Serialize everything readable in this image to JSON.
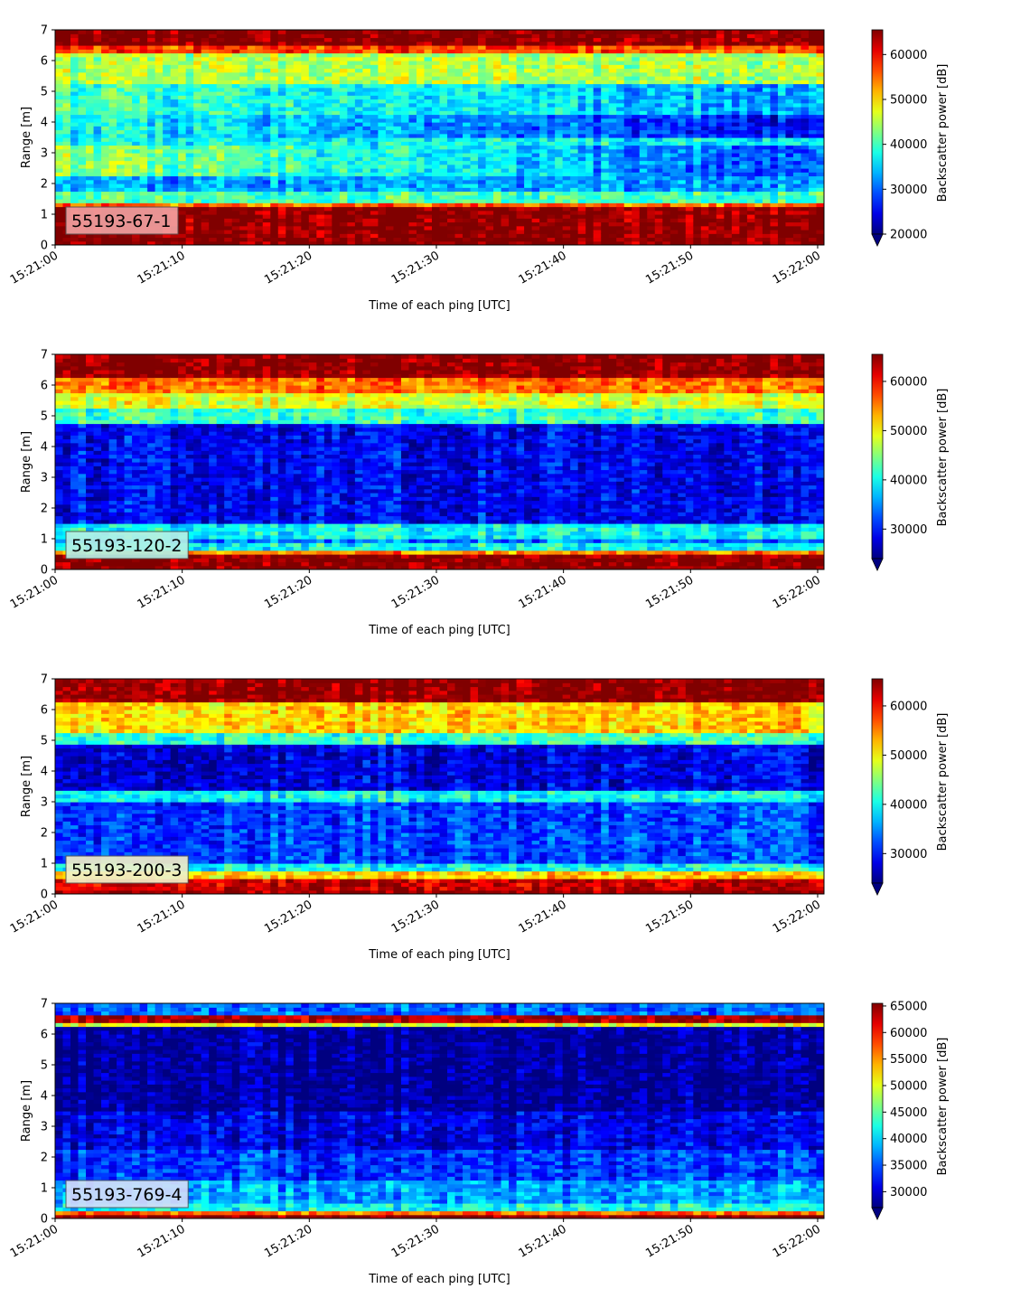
{
  "chart_data": [
    {
      "type": "heatmap",
      "label": "55193-67-1",
      "xlabel": "Time of each ping [UTC]",
      "ylabel": "Range [m]",
      "x_ticks": [
        "15:21:00",
        "15:21:10",
        "15:21:20",
        "15:21:30",
        "15:21:40",
        "15:21:50",
        "15:22:00"
      ],
      "x_range": [
        "15:21:00",
        "15:22:00"
      ],
      "y_ticks": [
        0,
        1,
        2,
        3,
        4,
        5,
        6,
        7
      ],
      "ylim": [
        0,
        7
      ],
      "colorbar_label": "Backscatter power [dB]",
      "colorbar_range": [
        20000,
        65500
      ],
      "colorbar_ticks": [
        20000,
        30000,
        40000,
        50000,
        60000
      ],
      "colormap": "jet",
      "label_box_color": "#f0a0a0",
      "bands": [
        {
          "range": [
            0,
            0.25
          ],
          "value": 65500
        },
        {
          "range": [
            0.25,
            1.2
          ],
          "value": 65000
        },
        {
          "range": [
            1.2,
            1.35
          ],
          "value": 55000
        },
        {
          "range": [
            1.35,
            1.75
          ],
          "value": 40000
        },
        {
          "range": [
            1.75,
            2.3
          ],
          "value": 33000
        },
        {
          "range": [
            2.3,
            3.2
          ],
          "value": [
            44000,
            29000
          ]
        },
        {
          "range": [
            3.2,
            3.5
          ],
          "value": 37000
        },
        {
          "range": [
            3.5,
            4.3
          ],
          "value": [
            38000,
            26000
          ]
        },
        {
          "range": [
            4.3,
            5.2
          ],
          "value": [
            40000,
            33000
          ]
        },
        {
          "range": [
            5.2,
            6.2
          ],
          "value": 45000
        },
        {
          "range": [
            6.2,
            6.5
          ],
          "value": 57000
        },
        {
          "range": [
            6.5,
            7.0
          ],
          "value": 65500
        }
      ]
    },
    {
      "type": "heatmap",
      "label": "55193-120-2",
      "xlabel": "Time of each ping [UTC]",
      "ylabel": "Range [m]",
      "x_ticks": [
        "15:21:00",
        "15:21:10",
        "15:21:20",
        "15:21:30",
        "15:21:40",
        "15:21:50",
        "15:22:00"
      ],
      "x_range": [
        "15:21:00",
        "15:22:00"
      ],
      "y_ticks": [
        0,
        1,
        2,
        3,
        4,
        5,
        6,
        7
      ],
      "ylim": [
        0,
        7
      ],
      "colorbar_label": "Backscatter power [dB]",
      "colorbar_range": [
        24000,
        65500
      ],
      "colorbar_ticks": [
        30000,
        40000,
        50000,
        60000
      ],
      "colormap": "jet",
      "label_box_color": "#b4f0e6",
      "bands": [
        {
          "range": [
            0,
            0.5
          ],
          "value": 65500
        },
        {
          "range": [
            0.5,
            0.65
          ],
          "value": 55000
        },
        {
          "range": [
            0.65,
            0.9
          ],
          "value": 40000
        },
        {
          "range": [
            0.9,
            1.05
          ],
          "value": 34000
        },
        {
          "range": [
            1.05,
            1.5
          ],
          "value": 40000
        },
        {
          "range": [
            1.5,
            4.8
          ],
          "value": 29000
        },
        {
          "range": [
            4.8,
            5.2
          ],
          "value": 42000
        },
        {
          "range": [
            5.2,
            5.8
          ],
          "value": 49000
        },
        {
          "range": [
            5.8,
            6.3
          ],
          "value": 56000
        },
        {
          "range": [
            6.3,
            7.0
          ],
          "value": 65500
        }
      ]
    },
    {
      "type": "heatmap",
      "label": "55193-200-3",
      "xlabel": "Time of each ping [UTC]",
      "ylabel": "Range [m]",
      "x_ticks": [
        "15:21:00",
        "15:21:10",
        "15:21:20",
        "15:21:30",
        "15:21:40",
        "15:21:50",
        "15:22:00"
      ],
      "x_range": [
        "15:21:00",
        "15:22:00"
      ],
      "y_ticks": [
        0,
        1,
        2,
        3,
        4,
        5,
        6,
        7
      ],
      "ylim": [
        0,
        7
      ],
      "colorbar_label": "Backscatter power [dB]",
      "colorbar_range": [
        24000,
        65500
      ],
      "colorbar_ticks": [
        30000,
        40000,
        50000,
        60000
      ],
      "colormap": "jet",
      "label_box_color": "#f0f0c8",
      "bands": [
        {
          "range": [
            0,
            0.15
          ],
          "value": 65500
        },
        {
          "range": [
            0.15,
            0.5
          ],
          "value": 63000
        },
        {
          "range": [
            0.5,
            0.7
          ],
          "value": 52000
        },
        {
          "range": [
            0.7,
            1.0
          ],
          "value": 40000
        },
        {
          "range": [
            1.0,
            3.0
          ],
          "value": 32000
        },
        {
          "range": [
            3.0,
            3.35
          ],
          "value": 40000
        },
        {
          "range": [
            3.35,
            4.9
          ],
          "value": 28000
        },
        {
          "range": [
            4.9,
            5.3
          ],
          "value": 42000
        },
        {
          "range": [
            5.3,
            6.3
          ],
          "value": 52000
        },
        {
          "range": [
            6.3,
            7.0
          ],
          "value": 65500
        }
      ]
    },
    {
      "type": "heatmap",
      "label": "55193-769-4",
      "xlabel": "Time of each ping [UTC]",
      "ylabel": "Range [m]",
      "x_ticks": [
        "15:21:00",
        "15:21:10",
        "15:21:20",
        "15:21:30",
        "15:21:40",
        "15:21:50",
        "15:22:00"
      ],
      "x_range": [
        "15:21:00",
        "15:22:00"
      ],
      "y_ticks": [
        0,
        1,
        2,
        3,
        4,
        5,
        6,
        7
      ],
      "ylim": [
        0,
        7
      ],
      "colorbar_label": "Backscatter power [dB]",
      "colorbar_range": [
        27000,
        65500
      ],
      "colorbar_ticks": [
        30000,
        35000,
        40000,
        45000,
        50000,
        55000,
        60000,
        65000
      ],
      "colormap": "jet",
      "label_box_color": "#d2dcfa",
      "bands": [
        {
          "range": [
            0,
            0.15
          ],
          "value": 65500
        },
        {
          "range": [
            0.15,
            0.3
          ],
          "value": 57000
        },
        {
          "range": [
            0.3,
            0.5
          ],
          "value": 42000
        },
        {
          "range": [
            0.5,
            1.2
          ],
          "value": 38000
        },
        {
          "range": [
            1.2,
            2.2
          ],
          "value": 34000
        },
        {
          "range": [
            2.2,
            3.5
          ],
          "value": 31000
        },
        {
          "range": [
            3.5,
            6.2
          ],
          "value": 28000
        },
        {
          "range": [
            6.2,
            6.4
          ],
          "value": 50000
        },
        {
          "range": [
            6.4,
            6.6
          ],
          "value": 64000
        },
        {
          "range": [
            6.6,
            7.0
          ],
          "value": 36000
        }
      ]
    }
  ]
}
